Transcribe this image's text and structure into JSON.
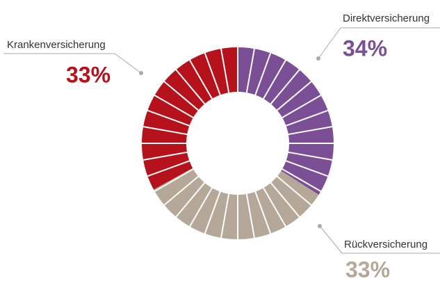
{
  "chart_data": {
    "type": "pie",
    "categories": [
      "Direktversicherung",
      "Rückversicherung",
      "Krankenversicherung"
    ],
    "values": [
      34,
      33,
      33
    ],
    "value_labels": [
      "34%",
      "33%",
      "33%"
    ],
    "colors": [
      "#7b4f96",
      "#b5a898",
      "#b5121b"
    ]
  }
}
